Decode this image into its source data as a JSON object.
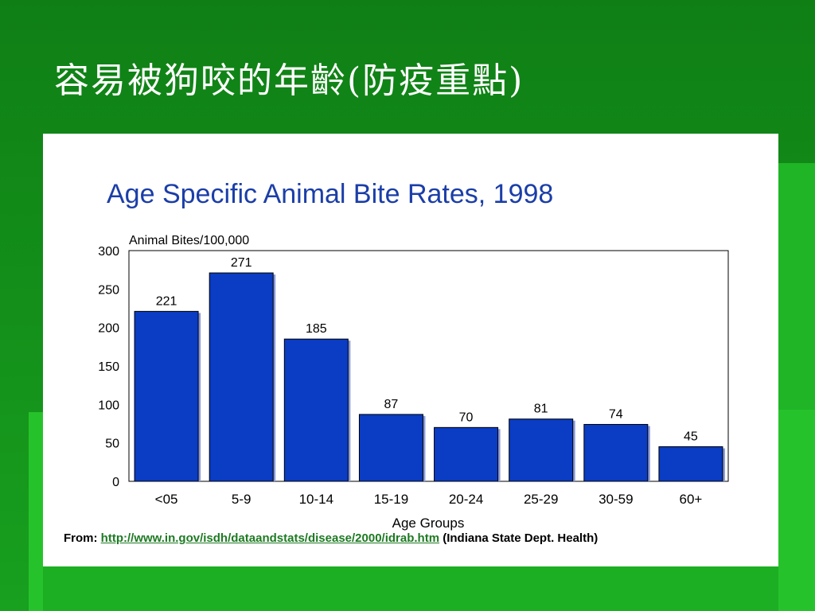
{
  "slide": {
    "title": "容易被狗咬的年齡(防疫重點)"
  },
  "source": {
    "prefix": "From:",
    "link": "http://www.in.gov/isdh/dataandstats/disease/2000/idrab.htm",
    "suffix": "(Indiana State Dept. Health)"
  },
  "colors": {
    "bar": "#0a3cc4",
    "background": "#12901a",
    "link": "#1d7a22"
  },
  "chart_data": {
    "type": "bar",
    "title": "Age Specific Animal Bite Rates, 1998",
    "ylabel": "Animal Bites/100,000",
    "xlabel": "Age Groups",
    "categories": [
      "<05",
      "5-9",
      "10-14",
      "15-19",
      "20-24",
      "25-29",
      "30-59",
      "60+"
    ],
    "values": [
      221,
      271,
      185,
      87,
      70,
      81,
      74,
      45
    ],
    "data_labels": [
      "221",
      "271",
      "185",
      "87",
      "70",
      "81",
      "74",
      "45"
    ],
    "ylim": [
      0,
      300
    ],
    "yticks": [
      0,
      50,
      100,
      150,
      200,
      250,
      300
    ],
    "ytick_labels": [
      "0",
      "50",
      "100",
      "150",
      "200",
      "250",
      "300"
    ],
    "grid": false,
    "legend": "none"
  }
}
